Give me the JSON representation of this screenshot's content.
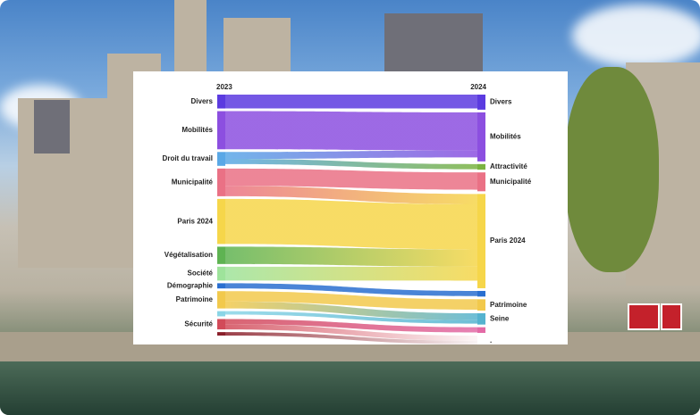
{
  "chart_data": {
    "type": "sankey",
    "title": "",
    "left_column_label": "2023",
    "right_column_label": "2024",
    "left_nodes": [
      {
        "name": "Divers",
        "value": 4,
        "color": "#5b3be0"
      },
      {
        "name": "Mobilités",
        "value": 11,
        "color": "#8c4fe0"
      },
      {
        "name": "Droit du travail",
        "value": 4,
        "color": "#5aa8e6"
      },
      {
        "name": "Municipalité",
        "value": 8,
        "color": "#ea7185"
      },
      {
        "name": "Paris 2024",
        "value": 13,
        "color": "#f6d64a"
      },
      {
        "name": "Végétalisation",
        "value": 5,
        "color": "#5eb352"
      },
      {
        "name": "Société",
        "value": 4,
        "color": "#9ee39b"
      },
      {
        "name": "Démographie",
        "value": 1.5,
        "color": "#2a6fd0"
      },
      {
        "name": "Patrimoine",
        "value": 5,
        "color": "#f2c94c"
      },
      {
        "name": "",
        "value": 1.5,
        "color": "#8ad5e6"
      },
      {
        "name": "Sécurité",
        "value": 3,
        "color": "#d24a59"
      },
      {
        "name": "",
        "value": 1,
        "color": "#8a1f2a"
      }
    ],
    "right_nodes": [
      {
        "name": "Divers",
        "value": 4,
        "color": "#5b3be0"
      },
      {
        "name": "Mobilités",
        "value": 13,
        "color": "#8c4fe0"
      },
      {
        "name": "Attractivité",
        "value": 1.5,
        "color": "#7bb341"
      },
      {
        "name": "Municipalité",
        "value": 5,
        "color": "#ea7185"
      },
      {
        "name": "Paris 2024",
        "value": 25,
        "color": "#f6d64a"
      },
      {
        "name": "",
        "value": 1.5,
        "color": "#2a6fd0"
      },
      {
        "name": "Patrimoine",
        "value": 3,
        "color": "#f2c94c"
      },
      {
        "name": "Seine",
        "value": 3,
        "color": "#55b3cf"
      },
      {
        "name": "",
        "value": 1.5,
        "color": "#e36aa6"
      },
      {
        "name": ".",
        "value": 0,
        "color": "#ffffff"
      }
    ],
    "links": [
      {
        "source": "Divers",
        "target": "Divers",
        "value": 4
      },
      {
        "source": "Mobilités",
        "target": "Mobilités",
        "value": 11
      },
      {
        "source": "Droit du travail",
        "target": "Mobilités",
        "value": 2
      },
      {
        "source": "Droit du travail",
        "target": "Attractivité",
        "value": 1.5
      },
      {
        "source": "Municipalité",
        "target": "Municipalité",
        "value": 5
      },
      {
        "source": "Municipalité",
        "target": "Paris 2024",
        "value": 3
      },
      {
        "source": "Paris 2024",
        "target": "Paris 2024",
        "value": 13
      },
      {
        "source": "Végétalisation",
        "target": "Paris 2024",
        "value": 5
      },
      {
        "source": "Société",
        "target": "Paris 2024",
        "value": 4
      },
      {
        "source": "Démographie",
        "target": "",
        "value": 1.5
      },
      {
        "source": "Patrimoine",
        "target": "Patrimoine",
        "value": 3
      },
      {
        "source": "Patrimoine",
        "target": "Seine",
        "value": 2
      },
      {
        "source": "",
        "target": "Seine",
        "value": 1
      },
      {
        "source": "Sécurité",
        "target": "",
        "value": 1.5
      },
      {
        "source": "Sécurité",
        "target": ".",
        "value": 1.5
      },
      {
        "source": "",
        "target": ".",
        "value": 1
      }
    ]
  }
}
